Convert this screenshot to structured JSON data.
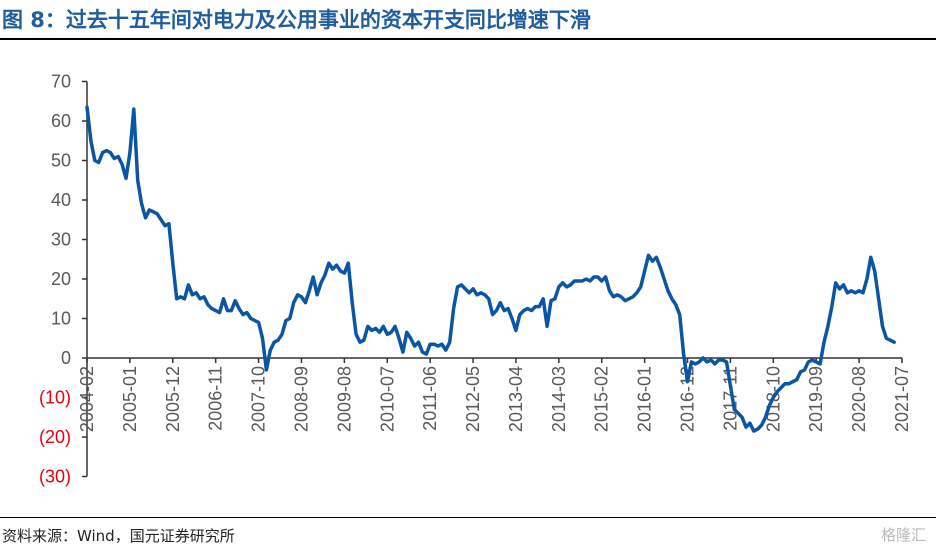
{
  "title": "图 8：过去十五年间对电力及公用事业的资本开支同比增速下滑",
  "source": "资料来源：Wind，国元证券研究所",
  "watermark": "格隆汇",
  "colors": {
    "line": "#0b56a4",
    "title": "#1f5d9c",
    "negative_tick": "#e8000b",
    "tick": "#595959"
  },
  "chart_data": {
    "type": "line",
    "title": "",
    "xlabel": "",
    "ylabel": "",
    "ylim": [
      -30,
      70
    ],
    "grid": false,
    "y_ticks": [
      "70",
      "60",
      "50",
      "40",
      "30",
      "20",
      "10",
      "0",
      "(10)",
      "(20)",
      "(30)"
    ],
    "x_ticks": [
      "2004-02",
      "2005-01",
      "2005-12",
      "2006-11",
      "2007-10",
      "2008-09",
      "2009-08",
      "2010-07",
      "2011-06",
      "2012-05",
      "2013-04",
      "2014-03",
      "2015-02",
      "2016-01",
      "2016-12",
      "2017-11",
      "2018-10",
      "2019-09",
      "2020-08",
      "2021-07"
    ],
    "series": [
      {
        "points": [
          [
            "2004-02",
            63.5
          ],
          [
            "2004-03",
            55
          ],
          [
            "2004-04",
            50
          ],
          [
            "2004-05",
            49.5
          ],
          [
            "2004-06",
            52
          ],
          [
            "2004-07",
            52.5
          ],
          [
            "2004-08",
            52
          ],
          [
            "2004-09",
            50.5
          ],
          [
            "2004-10",
            51
          ],
          [
            "2004-11",
            49
          ],
          [
            "2004-12",
            45.5
          ],
          [
            "2005-01",
            52
          ],
          [
            "2005-02",
            63
          ],
          [
            "2005-03",
            45
          ],
          [
            "2005-04",
            39
          ],
          [
            "2005-05",
            35.5
          ],
          [
            "2005-06",
            37.5
          ],
          [
            "2005-07",
            37
          ],
          [
            "2005-08",
            36.5
          ],
          [
            "2005-09",
            35
          ],
          [
            "2005-10",
            33.5
          ],
          [
            "2005-11",
            34
          ],
          [
            "2005-12",
            24
          ],
          [
            "2006-01",
            15
          ],
          [
            "2006-02",
            15.5
          ],
          [
            "2006-03",
            15
          ],
          [
            "2006-04",
            18.5
          ],
          [
            "2006-05",
            16
          ],
          [
            "2006-06",
            16.5
          ],
          [
            "2006-07",
            15
          ],
          [
            "2006-08",
            15.5
          ],
          [
            "2006-09",
            13.5
          ],
          [
            "2006-10",
            12.5
          ],
          [
            "2006-11",
            12
          ],
          [
            "2006-12",
            11.5
          ],
          [
            "2007-01",
            15
          ],
          [
            "2007-02",
            12
          ],
          [
            "2007-03",
            12
          ],
          [
            "2007-04",
            14.5
          ],
          [
            "2007-05",
            12.5
          ],
          [
            "2007-06",
            11
          ],
          [
            "2007-07",
            11.5
          ],
          [
            "2007-08",
            10
          ],
          [
            "2007-09",
            9.5
          ],
          [
            "2007-10",
            9
          ],
          [
            "2007-11",
            5
          ],
          [
            "2007-12",
            -3
          ],
          [
            "2008-01",
            2
          ],
          [
            "2008-02",
            4
          ],
          [
            "2008-03",
            4.5
          ],
          [
            "2008-04",
            6
          ],
          [
            "2008-05",
            9.5
          ],
          [
            "2008-06",
            10
          ],
          [
            "2008-07",
            14
          ],
          [
            "2008-08",
            16
          ],
          [
            "2008-09",
            15.5
          ],
          [
            "2008-10",
            14
          ],
          [
            "2008-11",
            17
          ],
          [
            "2008-12",
            20.5
          ],
          [
            "2009-01",
            16
          ],
          [
            "2009-02",
            19
          ],
          [
            "2009-03",
            21
          ],
          [
            "2009-04",
            24
          ],
          [
            "2009-05",
            22.5
          ],
          [
            "2009-06",
            23.5
          ],
          [
            "2009-07",
            22
          ],
          [
            "2009-08",
            21.5
          ],
          [
            "2009-09",
            24
          ],
          [
            "2009-10",
            14
          ],
          [
            "2009-11",
            6
          ],
          [
            "2009-12",
            4
          ],
          [
            "2010-01",
            4.5
          ],
          [
            "2010-02",
            8
          ],
          [
            "2010-03",
            7
          ],
          [
            "2010-04",
            7.5
          ],
          [
            "2010-05",
            6.5
          ],
          [
            "2010-06",
            8
          ],
          [
            "2010-07",
            6
          ],
          [
            "2010-08",
            6.5
          ],
          [
            "2010-09",
            8
          ],
          [
            "2010-10",
            5
          ],
          [
            "2010-11",
            1.5
          ],
          [
            "2010-12",
            6.5
          ],
          [
            "2011-01",
            5
          ],
          [
            "2011-02",
            3
          ],
          [
            "2011-03",
            4
          ],
          [
            "2011-04",
            1.5
          ],
          [
            "2011-05",
            1
          ],
          [
            "2011-06",
            3.5
          ],
          [
            "2011-07",
            3.5
          ],
          [
            "2011-08",
            3
          ],
          [
            "2011-09",
            3.5
          ],
          [
            "2011-10",
            2
          ],
          [
            "2011-11",
            4
          ],
          [
            "2011-12",
            12.5
          ],
          [
            "2012-01",
            18
          ],
          [
            "2012-02",
            18.5
          ],
          [
            "2012-03",
            17.5
          ],
          [
            "2012-04",
            16.5
          ],
          [
            "2012-05",
            17.5
          ],
          [
            "2012-06",
            16
          ],
          [
            "2012-07",
            16.5
          ],
          [
            "2012-08",
            16
          ],
          [
            "2012-09",
            15
          ],
          [
            "2012-10",
            11
          ],
          [
            "2012-11",
            12
          ],
          [
            "2012-12",
            14
          ],
          [
            "2013-01",
            12
          ],
          [
            "2013-02",
            12.5
          ],
          [
            "2013-03",
            10
          ],
          [
            "2013-04",
            7
          ],
          [
            "2013-05",
            11
          ],
          [
            "2013-06",
            12
          ],
          [
            "2013-07",
            12.5
          ],
          [
            "2013-08",
            12
          ],
          [
            "2013-09",
            13
          ],
          [
            "2013-10",
            13
          ],
          [
            "2013-11",
            15
          ],
          [
            "2013-12",
            8
          ],
          [
            "2014-01",
            14.5
          ],
          [
            "2014-02",
            15
          ],
          [
            "2014-03",
            18
          ],
          [
            "2014-04",
            19
          ],
          [
            "2014-05",
            18
          ],
          [
            "2014-06",
            18.5
          ],
          [
            "2014-07",
            19.5
          ],
          [
            "2014-08",
            19.5
          ],
          [
            "2014-09",
            19.5
          ],
          [
            "2014-10",
            20
          ],
          [
            "2014-11",
            19.5
          ],
          [
            "2014-12",
            20.5
          ],
          [
            "2015-01",
            20.5
          ],
          [
            "2015-02",
            19.5
          ],
          [
            "2015-03",
            20.5
          ],
          [
            "2015-04",
            17
          ],
          [
            "2015-05",
            15.5
          ],
          [
            "2015-06",
            16
          ],
          [
            "2015-07",
            15.5
          ],
          [
            "2015-08",
            14.5
          ],
          [
            "2015-09",
            15
          ],
          [
            "2015-10",
            15.5
          ],
          [
            "2015-11",
            16.5
          ],
          [
            "2015-12",
            18
          ],
          [
            "2016-01",
            22
          ],
          [
            "2016-02",
            26
          ],
          [
            "2016-03",
            24.5
          ],
          [
            "2016-04",
            25.5
          ],
          [
            "2016-05",
            23
          ],
          [
            "2016-06",
            20
          ],
          [
            "2016-07",
            17
          ],
          [
            "2016-08",
            15
          ],
          [
            "2016-09",
            13.5
          ],
          [
            "2016-10",
            11
          ],
          [
            "2016-11",
            1
          ],
          [
            "2016-12",
            -6
          ],
          [
            "2017-01",
            -1
          ],
          [
            "2017-02",
            -1.5
          ],
          [
            "2017-03",
            -1
          ],
          [
            "2017-04",
            0
          ],
          [
            "2017-05",
            -1
          ],
          [
            "2017-06",
            -0.5
          ],
          [
            "2017-07",
            -1.5
          ],
          [
            "2017-08",
            -0.5
          ],
          [
            "2017-09",
            -0.5
          ],
          [
            "2017-10",
            -1
          ],
          [
            "2017-11",
            -7
          ],
          [
            "2017-12",
            -13
          ],
          [
            "2018-01",
            -14
          ],
          [
            "2018-02",
            -15
          ],
          [
            "2018-03",
            -17.5
          ],
          [
            "2018-04",
            -16.5
          ],
          [
            "2018-05",
            -18.5
          ],
          [
            "2018-06",
            -18
          ],
          [
            "2018-07",
            -17
          ],
          [
            "2018-08",
            -15
          ],
          [
            "2018-09",
            -12
          ],
          [
            "2018-10",
            -10
          ],
          [
            "2018-11",
            -8.5
          ],
          [
            "2018-12",
            -7.5
          ],
          [
            "2019-01",
            -6.5
          ],
          [
            "2019-02",
            -6.5
          ],
          [
            "2019-03",
            -6
          ],
          [
            "2019-04",
            -5.5
          ],
          [
            "2019-05",
            -3.5
          ],
          [
            "2019-06",
            -3
          ],
          [
            "2019-07",
            -1
          ],
          [
            "2019-08",
            -0.5
          ],
          [
            "2019-09",
            -1
          ],
          [
            "2019-10",
            -1.5
          ],
          [
            "2019-11",
            4
          ],
          [
            "2019-12",
            8
          ],
          [
            "2020-01",
            13
          ],
          [
            "2020-02",
            19
          ],
          [
            "2020-03",
            17.5
          ],
          [
            "2020-04",
            18.5
          ],
          [
            "2020-05",
            16.5
          ],
          [
            "2020-06",
            17
          ],
          [
            "2020-07",
            16.5
          ],
          [
            "2020-08",
            17
          ],
          [
            "2020-09",
            16.5
          ],
          [
            "2020-10",
            20
          ],
          [
            "2020-11",
            25.5
          ],
          [
            "2020-12",
            22
          ],
          [
            "2021-01",
            15
          ],
          [
            "2021-02",
            8
          ],
          [
            "2021-03",
            5
          ],
          [
            "2021-04",
            4.5
          ],
          [
            "2021-05",
            4
          ]
        ]
      }
    ]
  }
}
